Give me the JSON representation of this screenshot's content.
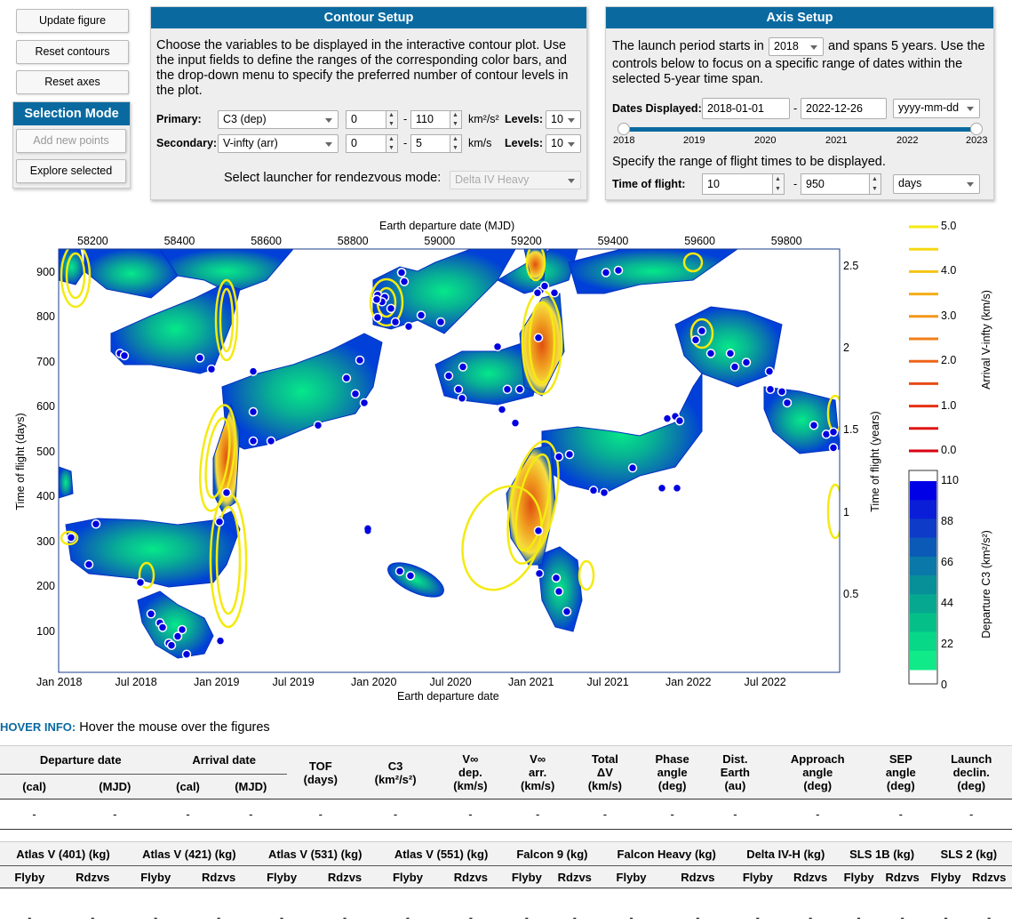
{
  "buttons": {
    "update": "Update figure",
    "reset_contours": "Reset contours",
    "reset_axes": "Reset axes",
    "selection_mode": "Selection Mode",
    "add_points": "Add new points",
    "explore": "Explore selected"
  },
  "contour": {
    "title": "Contour Setup",
    "desc": "Choose the variables to be displayed in the interactive contour plot. Use the input fields to define the ranges of the corresponding color bars, and the drop-down menu to specify the preferred number of contour levels in the plot.",
    "primary_label": "Primary:",
    "primary_value": "C3 (dep)",
    "primary_min": "0",
    "primary_max": "110",
    "primary_unit": "km²/s²",
    "secondary_label": "Secondary:",
    "secondary_value": "V-infty (arr)",
    "secondary_min": "0",
    "secondary_max": "5",
    "secondary_unit": "km/s",
    "levels_label": "Levels:",
    "levels_primary": "10",
    "levels_secondary": "10",
    "dash": "-",
    "launcher_label": "Select launcher for rendezvous mode:",
    "launcher_value": "Delta IV Heavy"
  },
  "axis": {
    "title": "Axis Setup",
    "text1a": "The launch period starts in",
    "start_year": "2018",
    "text1b": "and spans 5 years. Use the",
    "text2": "controls below to focus on a specific range of dates within the",
    "text3": "selected 5-year time span.",
    "dates_label": "Dates Displayed:",
    "date_from": "2018-01-01",
    "date_to": "2022-12-26",
    "date_format": "yyyy-mm-dd",
    "slider_ticks": [
      "2018",
      "2019",
      "2020",
      "2021",
      "2022",
      "2023"
    ],
    "tof_text": "Specify the range of flight times to be displayed.",
    "tof_label": "Time of flight:",
    "tof_min": "10",
    "tof_max": "950",
    "tof_unit": "days",
    "dash": "-"
  },
  "plot": {
    "top_label": "Earth departure date (MJD)",
    "bottom_label": "Earth departure date",
    "left_label": "Time of flight (days)",
    "right_label": "Time of flight (years)",
    "mjd_ticks": [
      "58200",
      "58400",
      "58600",
      "58800",
      "59000",
      "59200",
      "59400",
      "59600",
      "59800"
    ],
    "date_ticks": [
      "Jan 2018",
      "Jul 2018",
      "Jan 2019",
      "Jul 2019",
      "Jan 2020",
      "Jul 2020",
      "Jan 2021",
      "Jul 2021",
      "Jan 2022",
      "Jul 2022"
    ],
    "tof_ticks": [
      "100",
      "200",
      "300",
      "400",
      "500",
      "600",
      "700",
      "800",
      "900"
    ],
    "year_ticks": [
      "0.5",
      "1",
      "1.5",
      "2",
      "2.5"
    ]
  },
  "colorbars": {
    "vinf_label": "Arrival V-infty (km/s)",
    "vinf_ticks": [
      "5.0",
      "4.0",
      "3.0",
      "2.0",
      "1.0",
      "0.0"
    ],
    "c3_label": "Departure C3 (km²/s²)",
    "c3_ticks": [
      "110",
      "88",
      "66",
      "44",
      "22",
      "0"
    ],
    "c3_colors": [
      "#0000e6",
      "#0a1ed8",
      "#0e3cc8",
      "#0c5ab8",
      "#0a78a8",
      "#089098",
      "#06a890",
      "#04c088",
      "#06d888",
      "#10ea88"
    ]
  },
  "hover": {
    "label": "HOVER INFO:",
    "text": "Hover the mouse over the figures"
  },
  "table1": {
    "group_dep": "Departure date",
    "group_arr": "Arrival date",
    "sub": [
      "(cal)",
      "(MJD)",
      "(cal)",
      "(MJD)"
    ],
    "cols": [
      [
        "TOF",
        "(days)"
      ],
      [
        "C3",
        "(km²/s²)"
      ],
      [
        "V∞",
        "dep.",
        "(km/s)"
      ],
      [
        "V∞",
        "arr.",
        "(km/s)"
      ],
      [
        "Total",
        "ΔV",
        "(km/s)"
      ],
      [
        "Phase",
        "angle",
        "(deg)"
      ],
      [
        "Dist.",
        "Earth",
        "(au)"
      ],
      [
        "Approach",
        "angle",
        "(deg)"
      ],
      [
        "SEP",
        "angle",
        "(deg)"
      ],
      [
        "Launch",
        "declin.",
        "(deg)"
      ]
    ],
    "empty": "-"
  },
  "table2": {
    "launchers": [
      "Atlas V (401) (kg)",
      "Atlas V (421) (kg)",
      "Atlas V (531) (kg)",
      "Atlas V (551) (kg)",
      "Falcon 9 (kg)",
      "Falcon Heavy (kg)",
      "Delta IV-H (kg)",
      "SLS 1B (kg)",
      "SLS 2 (kg)"
    ],
    "flyby": "Flyby",
    "rdzvs": "Rdzvs",
    "empty": "-"
  },
  "points": {
    "tof_days": [
      900,
      840,
      820,
      800,
      880,
      720,
      715,
      710,
      685,
      680,
      590,
      525,
      525,
      560,
      410,
      345,
      340,
      310,
      250,
      210,
      140,
      120,
      110,
      105,
      90,
      75,
      70,
      50,
      80,
      330,
      565,
      610,
      630,
      665,
      705,
      790,
      780,
      805,
      850,
      845,
      835,
      840,
      900,
      790,
      670,
      640,
      620,
      595,
      640,
      640,
      690,
      735,
      755,
      860,
      870,
      855,
      855,
      495,
      490,
      410,
      415,
      465,
      230,
      220,
      190,
      145,
      325,
      235,
      225,
      905,
      900,
      680,
      700,
      720,
      720,
      750,
      770,
      690,
      640,
      635,
      610,
      560,
      540,
      545,
      510,
      580,
      570,
      575,
      420,
      420
    ]
  }
}
